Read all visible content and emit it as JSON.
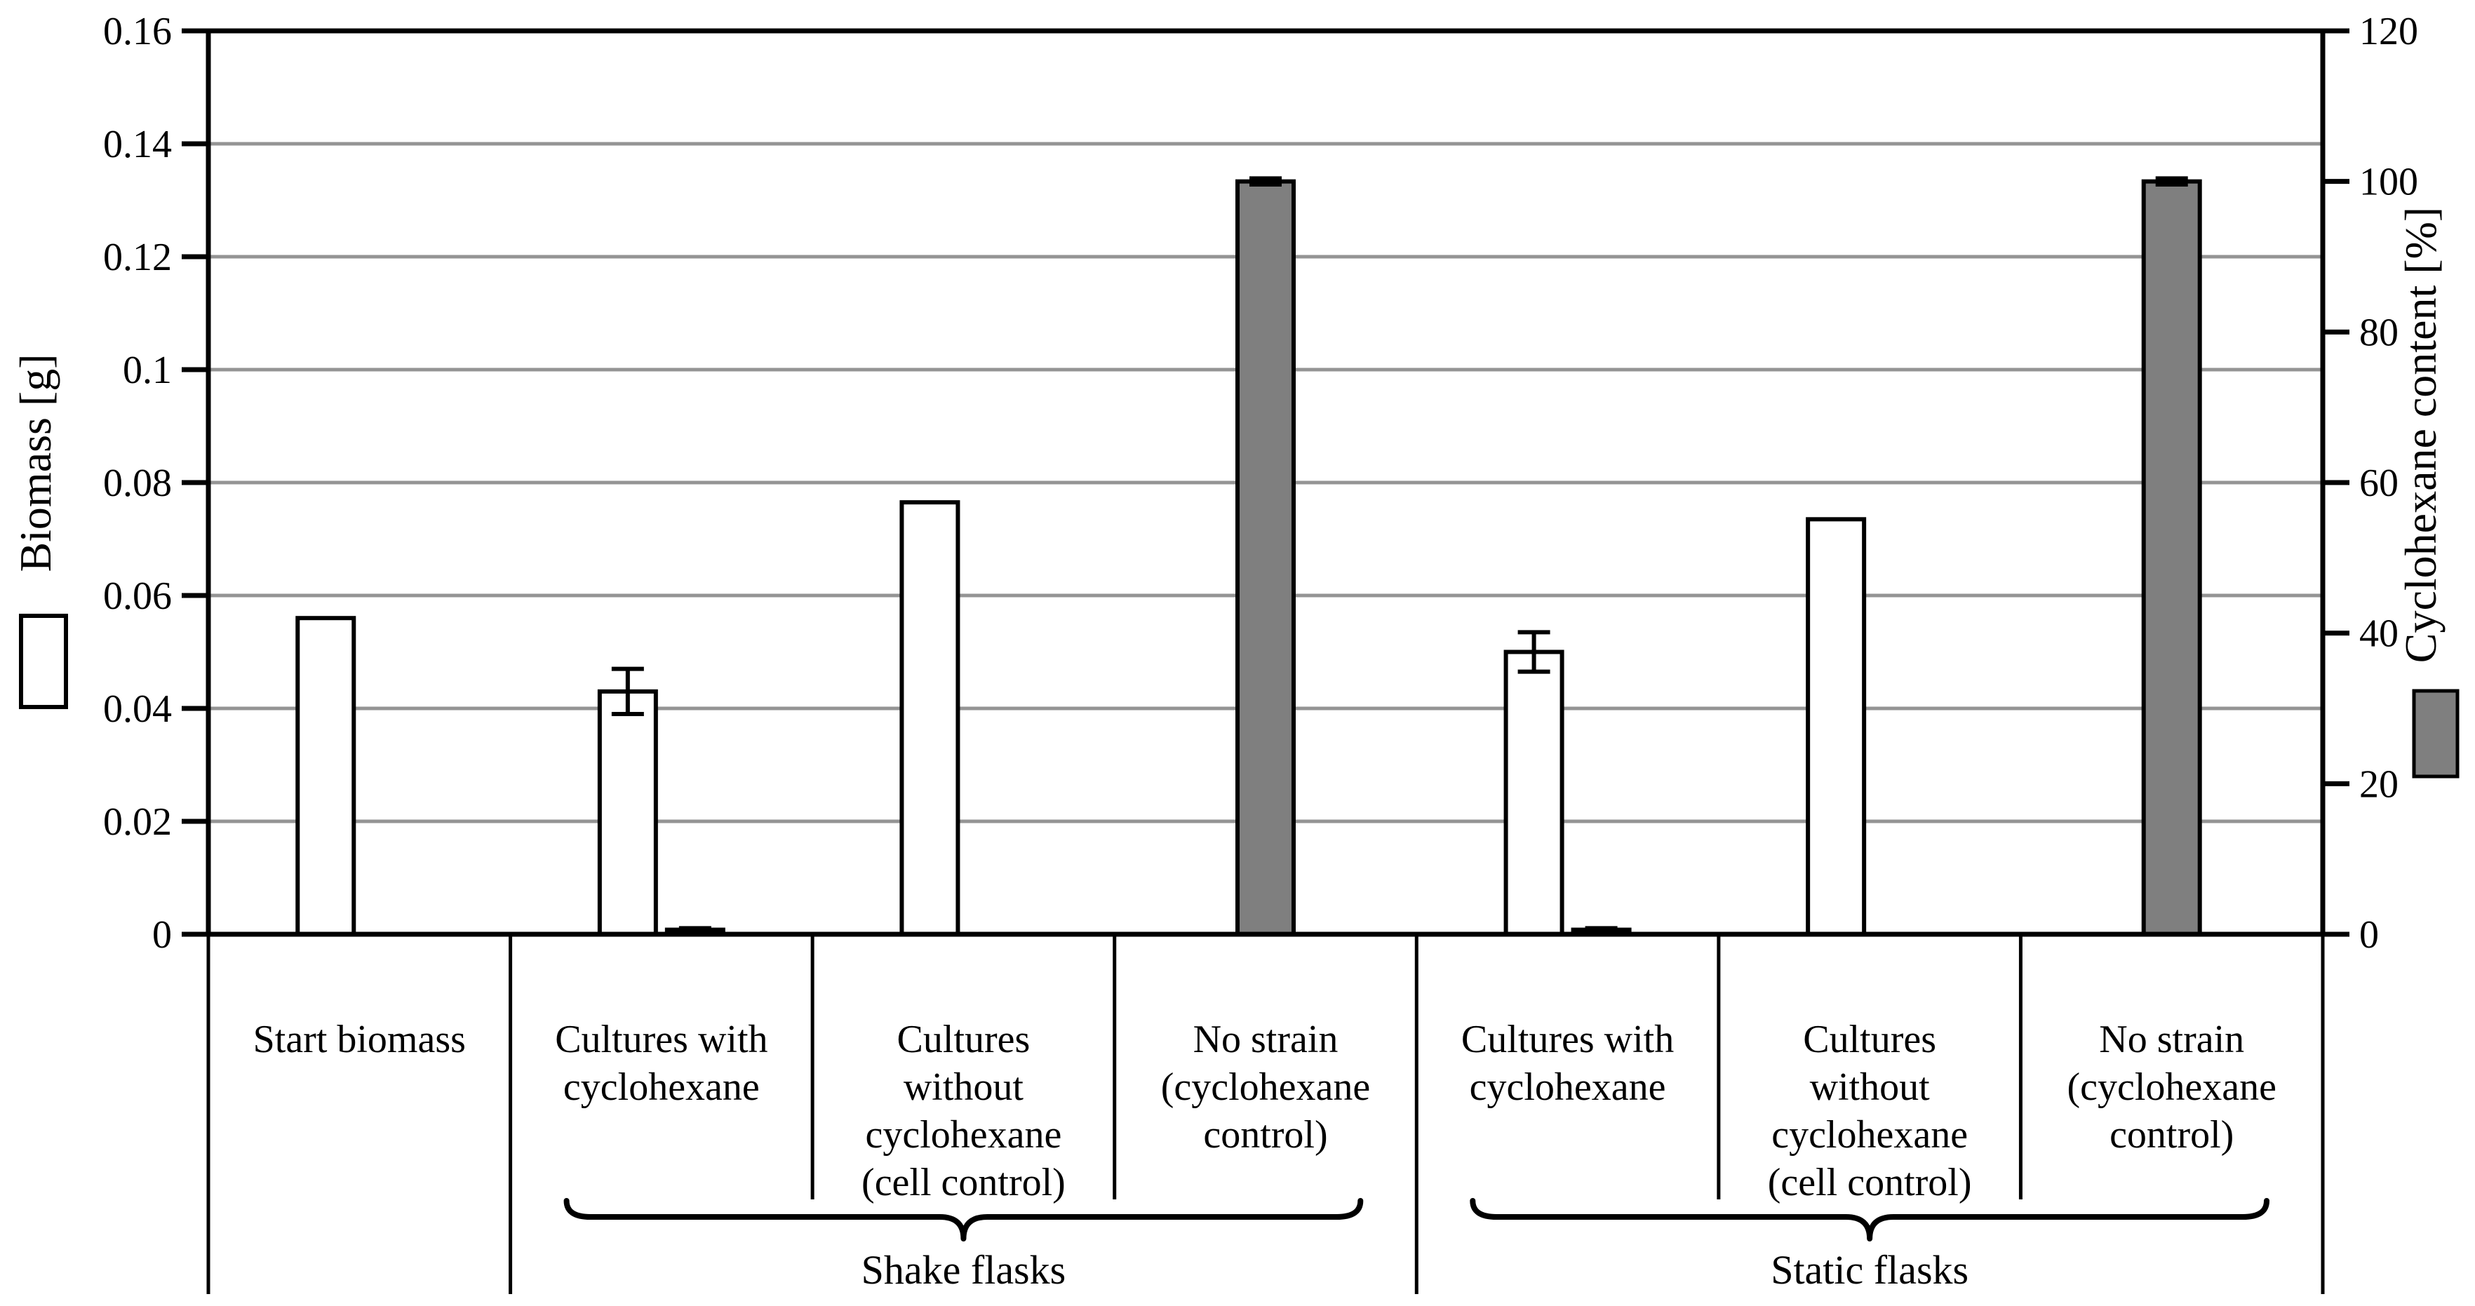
{
  "chart_data": {
    "type": "bar",
    "title": "",
    "categories": [
      {
        "lines": [
          "Start biomass"
        ]
      },
      {
        "lines": [
          "Cultures with",
          "cyclohexane"
        ]
      },
      {
        "lines": [
          "Cultures",
          "without",
          "cyclohexane",
          "(cell control)"
        ]
      },
      {
        "lines": [
          "No strain",
          "(cyclohexane",
          "control)"
        ]
      },
      {
        "lines": [
          "Cultures with",
          "cyclohexane"
        ]
      },
      {
        "lines": [
          "Cultures",
          "without",
          "cyclohexane",
          "(cell control)"
        ]
      },
      {
        "lines": [
          "No strain",
          "(cyclohexane",
          "control)"
        ]
      }
    ],
    "groups": [
      {
        "label": "Shake flasks",
        "from_category": 1,
        "to_category": 3
      },
      {
        "label": "Static flasks",
        "from_category": 4,
        "to_category": 6
      }
    ],
    "series": [
      {
        "name": "Biomass [g]",
        "axis": "left",
        "fill": "#ffffff",
        "values": [
          0.056,
          0.043,
          0.0765,
          null,
          0.05,
          0.0735,
          null
        ],
        "errors": [
          0,
          0.004,
          0,
          0,
          0.0035,
          0,
          0
        ]
      },
      {
        "name": "Cyclohexane content [%]",
        "axis": "right",
        "fill": "#7f7f7f",
        "values": [
          null,
          0.6,
          null,
          100,
          0.6,
          null,
          100
        ],
        "errors": [
          0,
          0.2,
          0,
          0.4,
          0.2,
          0,
          0.4
        ]
      }
    ],
    "left_axis": {
      "label": "Biomass [g]",
      "min": 0,
      "max": 0.16,
      "tick_values": [
        0,
        0.02,
        0.04,
        0.06,
        0.08,
        0.1,
        0.12,
        0.14,
        0.16
      ],
      "tick_labels": [
        "0",
        "0.02",
        "0.04",
        "0.06",
        "0.08",
        "0.1",
        "0.12",
        "0.14",
        "0.16"
      ]
    },
    "right_axis": {
      "label": "Cyclohexane content [%]",
      "min": 0,
      "max": 120,
      "tick_values": [
        0,
        20,
        40,
        60,
        80,
        100,
        120
      ],
      "tick_labels": [
        "0",
        "20",
        "40",
        "60",
        "80",
        "100",
        "120"
      ]
    },
    "grid": true,
    "legend_position": "sides",
    "colors": {
      "outline": "#000000",
      "gridline": "#949494",
      "gray_series": "#7f7f7f",
      "background": "#ffffff"
    }
  }
}
